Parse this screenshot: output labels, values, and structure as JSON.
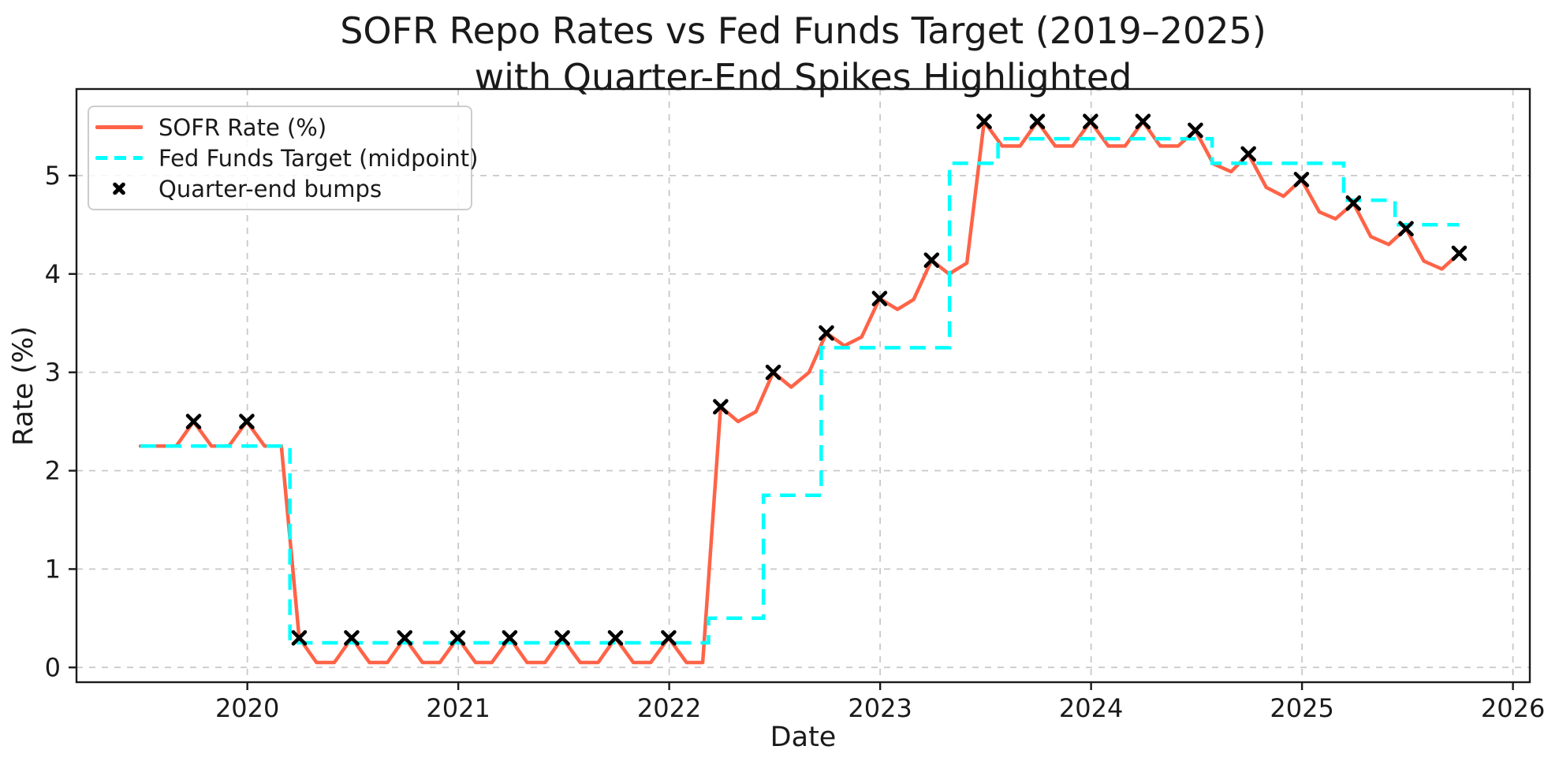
{
  "header": {
    "title_line1": "SOFR Repo Rates vs Fed Funds Target (2019–2025)",
    "title_line2": "with Quarter-End Spikes Highlighted"
  },
  "axes": {
    "xlabel": "Date",
    "ylabel": "Rate (%)"
  },
  "legend": {
    "items": [
      {
        "label": "SOFR Rate (%)",
        "type": "solid-line",
        "color": "#ff6347"
      },
      {
        "label": "Fed Funds Target (midpoint)",
        "type": "dashed-line",
        "color": "#00ffff"
      },
      {
        "label": "Quarter-end bumps",
        "type": "x-marker",
        "color": "#000000"
      }
    ]
  },
  "colors": {
    "sofr": "#ff6347",
    "fed_funds": "#00ffff",
    "markers": "#000000",
    "grid": "#c8c8c8",
    "spine": "#1a1a1a",
    "text": "#1a1a1a"
  },
  "chart_data": {
    "type": "line",
    "title": "SOFR Repo Rates vs Fed Funds Target (2019–2025) with Quarter-End Spikes Highlighted",
    "xlabel": "Date",
    "ylabel": "Rate (%)",
    "grid": true,
    "legend_position": "upper-left",
    "xlim_years": [
      2019.19,
      2026.08
    ],
    "ylim": [
      -0.15,
      5.88
    ],
    "xticks": [
      2020,
      2021,
      2022,
      2023,
      2024,
      2025,
      2026
    ],
    "yticks": [
      0,
      1,
      2,
      3,
      4,
      5
    ],
    "series": [
      {
        "name": "SOFR Rate (%)",
        "style": "solid",
        "color": "#ff6347",
        "points": [
          [
            "2019-06-30",
            2.25
          ],
          [
            "2019-07-31",
            2.25
          ],
          [
            "2019-08-31",
            2.25
          ],
          [
            "2019-09-30",
            2.5
          ],
          [
            "2019-10-31",
            2.25
          ],
          [
            "2019-11-30",
            2.25
          ],
          [
            "2019-12-31",
            2.5
          ],
          [
            "2020-01-31",
            2.25
          ],
          [
            "2020-02-29",
            2.25
          ],
          [
            "2020-03-31",
            0.3
          ],
          [
            "2020-04-30",
            0.05
          ],
          [
            "2020-05-31",
            0.05
          ],
          [
            "2020-06-30",
            0.3
          ],
          [
            "2020-07-31",
            0.05
          ],
          [
            "2020-08-31",
            0.05
          ],
          [
            "2020-09-30",
            0.3
          ],
          [
            "2020-10-31",
            0.05
          ],
          [
            "2020-11-30",
            0.05
          ],
          [
            "2020-12-31",
            0.3
          ],
          [
            "2021-01-31",
            0.05
          ],
          [
            "2021-02-28",
            0.05
          ],
          [
            "2021-03-31",
            0.3
          ],
          [
            "2021-04-30",
            0.05
          ],
          [
            "2021-05-31",
            0.05
          ],
          [
            "2021-06-30",
            0.3
          ],
          [
            "2021-07-31",
            0.05
          ],
          [
            "2021-08-31",
            0.05
          ],
          [
            "2021-09-30",
            0.3
          ],
          [
            "2021-10-31",
            0.05
          ],
          [
            "2021-11-30",
            0.05
          ],
          [
            "2021-12-31",
            0.3
          ],
          [
            "2022-01-31",
            0.05
          ],
          [
            "2022-02-28",
            0.05
          ],
          [
            "2022-03-31",
            2.65
          ],
          [
            "2022-04-30",
            2.5
          ],
          [
            "2022-05-31",
            2.6
          ],
          [
            "2022-06-30",
            3.0
          ],
          [
            "2022-07-31",
            2.85
          ],
          [
            "2022-08-31",
            3.0
          ],
          [
            "2022-09-30",
            3.4
          ],
          [
            "2022-10-31",
            3.27
          ],
          [
            "2022-11-30",
            3.36
          ],
          [
            "2022-12-31",
            3.75
          ],
          [
            "2023-01-31",
            3.64
          ],
          [
            "2023-02-28",
            3.74
          ],
          [
            "2023-03-31",
            4.14
          ],
          [
            "2023-04-30",
            4.0
          ],
          [
            "2023-05-31",
            4.11
          ],
          [
            "2023-06-30",
            5.55
          ],
          [
            "2023-07-31",
            5.3
          ],
          [
            "2023-08-31",
            5.3
          ],
          [
            "2023-09-30",
            5.55
          ],
          [
            "2023-10-31",
            5.3
          ],
          [
            "2023-11-30",
            5.3
          ],
          [
            "2023-12-31",
            5.55
          ],
          [
            "2024-01-31",
            5.3
          ],
          [
            "2024-02-29",
            5.3
          ],
          [
            "2024-03-31",
            5.55
          ],
          [
            "2024-04-30",
            5.3
          ],
          [
            "2024-05-31",
            5.3
          ],
          [
            "2024-06-30",
            5.46
          ],
          [
            "2024-07-31",
            5.12
          ],
          [
            "2024-08-31",
            5.04
          ],
          [
            "2024-09-30",
            5.22
          ],
          [
            "2024-10-31",
            4.88
          ],
          [
            "2024-11-30",
            4.79
          ],
          [
            "2024-12-31",
            4.96
          ],
          [
            "2025-01-31",
            4.63
          ],
          [
            "2025-02-28",
            4.56
          ],
          [
            "2025-03-31",
            4.72
          ],
          [
            "2025-04-30",
            4.38
          ],
          [
            "2025-05-31",
            4.3
          ],
          [
            "2025-06-30",
            4.46
          ],
          [
            "2025-07-31",
            4.13
          ],
          [
            "2025-08-31",
            4.05
          ],
          [
            "2025-09-30",
            4.21
          ]
        ]
      },
      {
        "name": "Fed Funds Target (midpoint)",
        "style": "dashed-step",
        "color": "#00ffff",
        "steps": [
          [
            "2019-06-30",
            2.25
          ],
          [
            "2020-03-15",
            0.25
          ],
          [
            "2022-03-10",
            0.5
          ],
          [
            "2022-06-13",
            1.75
          ],
          [
            "2022-09-21",
            3.25
          ],
          [
            "2023-05-01",
            5.125
          ],
          [
            "2023-07-24",
            5.375
          ],
          [
            "2024-07-29",
            5.125
          ],
          [
            "2025-03-14",
            4.75
          ],
          [
            "2025-06-11",
            4.5
          ]
        ],
        "end_date": "2025-09-30"
      },
      {
        "name": "Quarter-end bumps",
        "style": "x-marker",
        "color": "#000000",
        "points": [
          [
            "2019-09-30",
            2.5
          ],
          [
            "2019-12-31",
            2.5
          ],
          [
            "2020-03-31",
            0.3
          ],
          [
            "2020-06-30",
            0.3
          ],
          [
            "2020-09-30",
            0.3
          ],
          [
            "2020-12-31",
            0.3
          ],
          [
            "2021-03-31",
            0.3
          ],
          [
            "2021-06-30",
            0.3
          ],
          [
            "2021-09-30",
            0.3
          ],
          [
            "2021-12-31",
            0.3
          ],
          [
            "2022-03-31",
            2.65
          ],
          [
            "2022-06-30",
            3.0
          ],
          [
            "2022-09-30",
            3.4
          ],
          [
            "2022-12-31",
            3.75
          ],
          [
            "2023-03-31",
            4.14
          ],
          [
            "2023-06-30",
            5.55
          ],
          [
            "2023-09-30",
            5.55
          ],
          [
            "2023-12-31",
            5.55
          ],
          [
            "2024-03-31",
            5.55
          ],
          [
            "2024-06-30",
            5.46
          ],
          [
            "2024-09-30",
            5.22
          ],
          [
            "2024-12-31",
            4.96
          ],
          [
            "2025-03-31",
            4.72
          ],
          [
            "2025-06-30",
            4.46
          ],
          [
            "2025-09-30",
            4.21
          ]
        ]
      }
    ]
  }
}
